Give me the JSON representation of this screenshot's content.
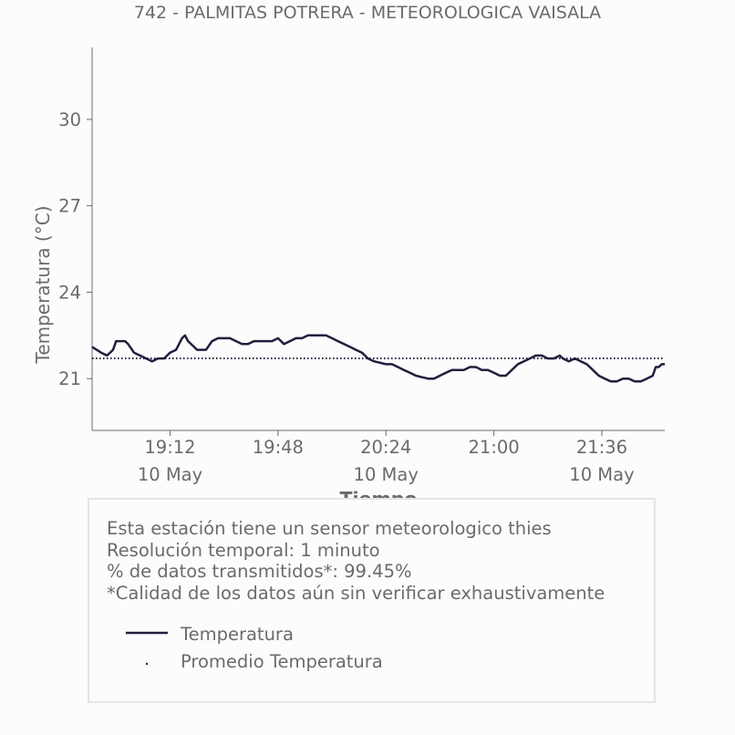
{
  "chart_data": {
    "type": "line",
    "title": "742 - PALMITAS POTRERA - METEOROLOGICA VAISALA",
    "xlabel": "Tiempo",
    "ylabel": "Temperatura (°C)",
    "x_ticks": [
      {
        "time": "19:12",
        "date": "10 May"
      },
      {
        "time": "19:48",
        "date": ""
      },
      {
        "time": "20:24",
        "date": "10 May"
      },
      {
        "time": "21:00",
        "date": ""
      },
      {
        "time": "21:36",
        "date": "10 May"
      }
    ],
    "y_ticks": [
      "21",
      "24",
      "27",
      "30"
    ],
    "ylim": [
      19.2,
      32.5
    ],
    "xlim": [
      "18:46",
      "21:57"
    ],
    "series": [
      {
        "name": "Temperatura",
        "color": "#1f1f3d",
        "style": "solid",
        "points": [
          [
            "18:46",
            22.1
          ],
          [
            "18:49",
            21.9
          ],
          [
            "18:51",
            21.8
          ],
          [
            "18:53",
            22.0
          ],
          [
            "18:54",
            22.3
          ],
          [
            "18:57",
            22.3
          ],
          [
            "18:58",
            22.2
          ],
          [
            "19:00",
            21.9
          ],
          [
            "19:02",
            21.8
          ],
          [
            "19:04",
            21.7
          ],
          [
            "19:06",
            21.6
          ],
          [
            "19:08",
            21.7
          ],
          [
            "19:10",
            21.7
          ],
          [
            "19:12",
            21.9
          ],
          [
            "19:14",
            22.0
          ],
          [
            "19:16",
            22.4
          ],
          [
            "19:17",
            22.5
          ],
          [
            "19:18",
            22.3
          ],
          [
            "19:20",
            22.1
          ],
          [
            "19:21",
            22.0
          ],
          [
            "19:24",
            22.0
          ],
          [
            "19:26",
            22.3
          ],
          [
            "19:28",
            22.4
          ],
          [
            "19:32",
            22.4
          ],
          [
            "19:34",
            22.3
          ],
          [
            "19:36",
            22.2
          ],
          [
            "19:38",
            22.2
          ],
          [
            "19:40",
            22.3
          ],
          [
            "19:44",
            22.3
          ],
          [
            "19:46",
            22.3
          ],
          [
            "19:48",
            22.4
          ],
          [
            "19:50",
            22.2
          ],
          [
            "19:52",
            22.3
          ],
          [
            "19:54",
            22.4
          ],
          [
            "19:56",
            22.4
          ],
          [
            "19:58",
            22.5
          ],
          [
            "20:04",
            22.5
          ],
          [
            "20:06",
            22.4
          ],
          [
            "20:08",
            22.3
          ],
          [
            "20:10",
            22.2
          ],
          [
            "20:12",
            22.1
          ],
          [
            "20:14",
            22.0
          ],
          [
            "20:16",
            21.9
          ],
          [
            "20:18",
            21.7
          ],
          [
            "20:20",
            21.6
          ],
          [
            "20:24",
            21.5
          ],
          [
            "20:26",
            21.5
          ],
          [
            "20:28",
            21.4
          ],
          [
            "20:30",
            21.3
          ],
          [
            "20:32",
            21.2
          ],
          [
            "20:34",
            21.1
          ],
          [
            "20:38",
            21.0
          ],
          [
            "20:40",
            21.0
          ],
          [
            "20:42",
            21.1
          ],
          [
            "20:44",
            21.2
          ],
          [
            "20:46",
            21.3
          ],
          [
            "20:50",
            21.3
          ],
          [
            "20:52",
            21.4
          ],
          [
            "20:54",
            21.4
          ],
          [
            "20:56",
            21.3
          ],
          [
            "20:58",
            21.3
          ],
          [
            "21:00",
            21.2
          ],
          [
            "21:02",
            21.1
          ],
          [
            "21:04",
            21.1
          ],
          [
            "21:06",
            21.3
          ],
          [
            "21:08",
            21.5
          ],
          [
            "21:10",
            21.6
          ],
          [
            "21:12",
            21.7
          ],
          [
            "21:14",
            21.8
          ],
          [
            "21:16",
            21.8
          ],
          [
            "21:18",
            21.7
          ],
          [
            "21:20",
            21.7
          ],
          [
            "21:22",
            21.8
          ],
          [
            "21:23",
            21.7
          ],
          [
            "21:25",
            21.6
          ],
          [
            "21:27",
            21.7
          ],
          [
            "21:29",
            21.6
          ],
          [
            "21:31",
            21.5
          ],
          [
            "21:33",
            21.3
          ],
          [
            "21:35",
            21.1
          ],
          [
            "21:37",
            21.0
          ],
          [
            "21:39",
            20.9
          ],
          [
            "21:41",
            20.9
          ],
          [
            "21:43",
            21.0
          ],
          [
            "21:45",
            21.0
          ],
          [
            "21:47",
            20.9
          ],
          [
            "21:49",
            20.9
          ],
          [
            "21:51",
            21.0
          ],
          [
            "21:53",
            21.1
          ],
          [
            "21:54",
            21.4
          ],
          [
            "21:55",
            21.4
          ],
          [
            "21:56",
            21.5
          ],
          [
            "21:57",
            21.5
          ]
        ]
      },
      {
        "name": "Promedio Temperatura",
        "color": "#1f1f3d",
        "style": "dotted",
        "value": 21.7
      }
    ],
    "grid": false,
    "legend_position": "bottom"
  },
  "info": {
    "lines": [
      "Esta estación tiene un sensor meteorologico thies",
      "Resolución temporal: 1 minuto",
      "% de datos transmitidos*: 99.45%",
      "*Calidad de los datos aún sin verificar exhaustivamente"
    ]
  }
}
